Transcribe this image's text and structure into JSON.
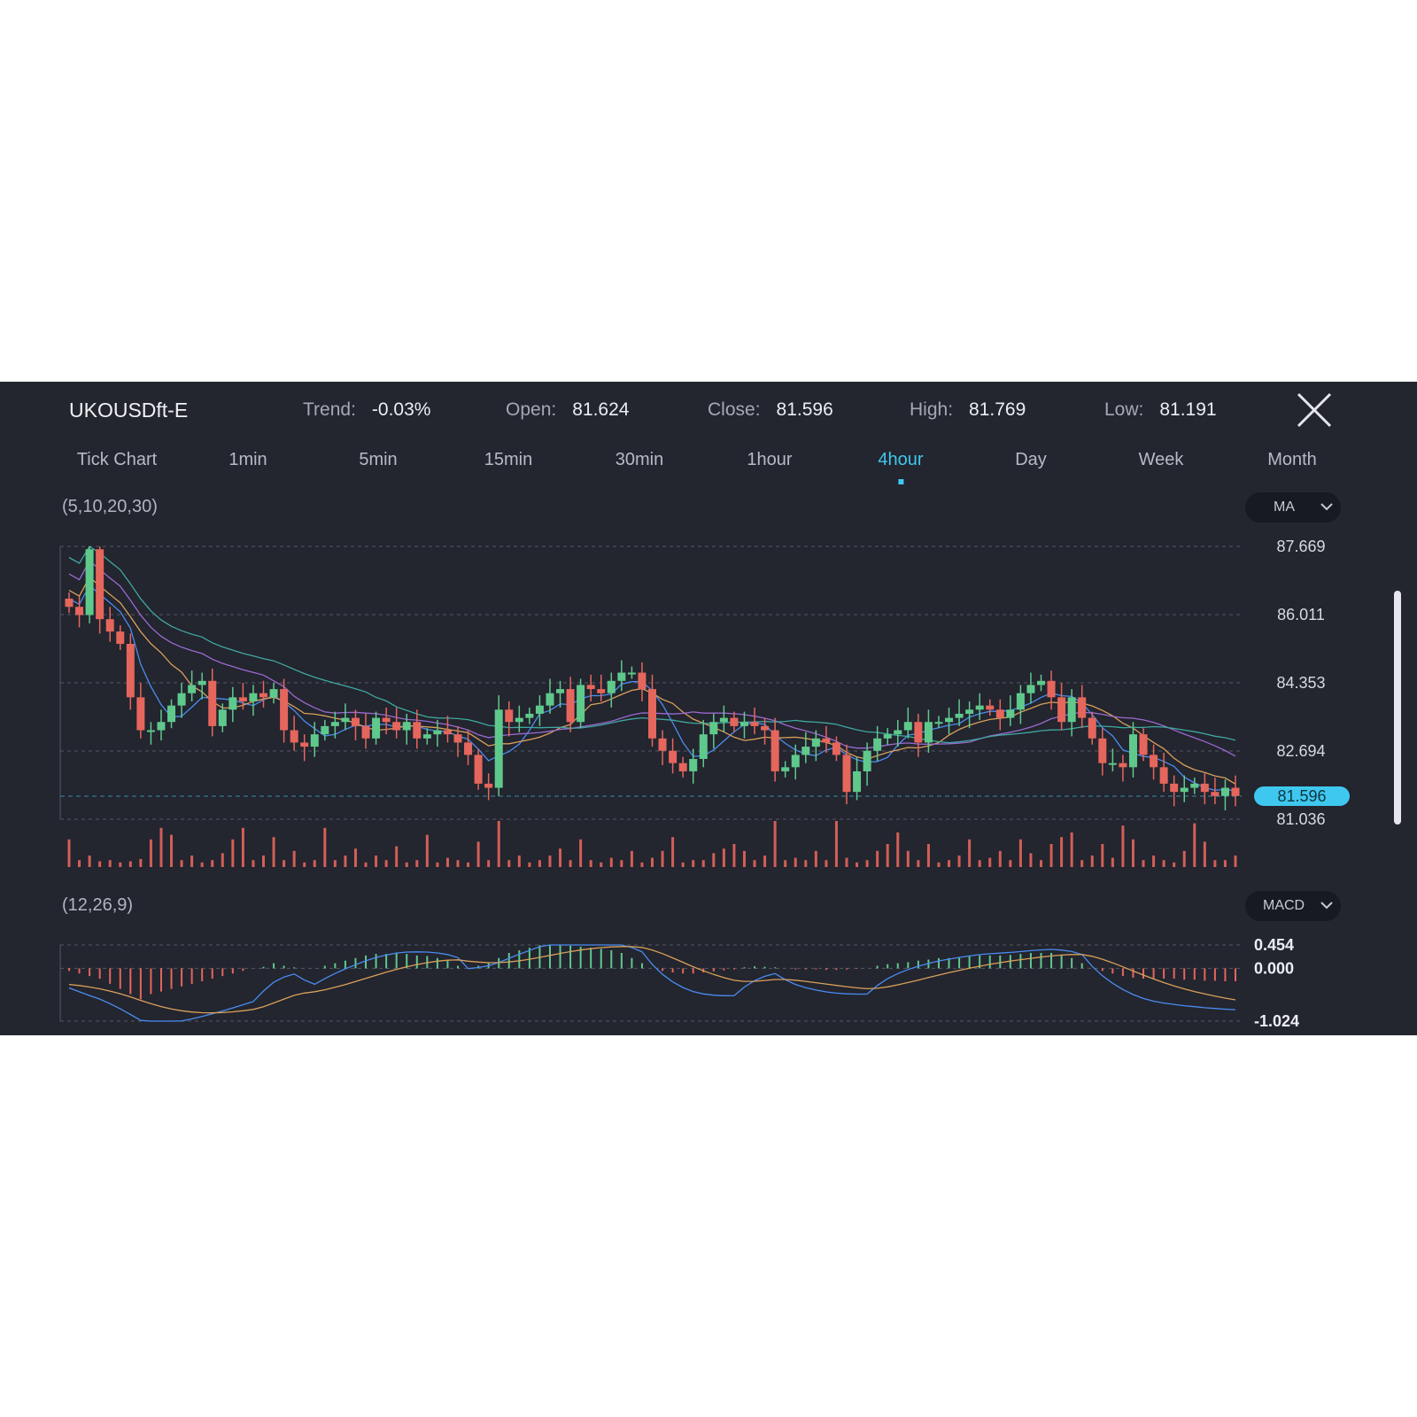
{
  "header": {
    "symbol": "UKOUSDft-E",
    "trend_label": "Trend:",
    "trend_value": "-0.03%",
    "open_label": "Open:",
    "open_value": "81.624",
    "close_label": "Close:",
    "close_value": "81.596",
    "high_label": "High:",
    "high_value": "81.769",
    "low_label": "Low:",
    "low_value": "81.191"
  },
  "tabs": [
    {
      "label": "Tick Chart"
    },
    {
      "label": "1min"
    },
    {
      "label": "5min"
    },
    {
      "label": "15min"
    },
    {
      "label": "30min"
    },
    {
      "label": "1hour"
    },
    {
      "label": "4hour"
    },
    {
      "label": "Day"
    },
    {
      "label": "Week"
    },
    {
      "label": "Month"
    }
  ],
  "active_tab": "4hour",
  "ma_panel": {
    "params": "(5,10,20,30)",
    "indicator": "MA"
  },
  "macd_panel": {
    "params": "(12,26,9)",
    "indicator": "MACD"
  },
  "colors": {
    "background": "#23252f",
    "up": "#5fc98c",
    "down": "#e5665c",
    "accent": "#3fc8ef",
    "ma5": "#4a8cf0",
    "ma10": "#d9a05a",
    "ma20": "#9a6ad0",
    "ma30": "#3fa8a0"
  },
  "icons": {
    "close": "close-icon",
    "dropdown": "chevron-down-icon"
  },
  "chart_data": [
    {
      "type": "candlestick",
      "yticks": [
        "87.669",
        "86.011",
        "84.353",
        "82.694",
        "81.036"
      ],
      "ylim": [
        81.036,
        87.669
      ],
      "current_price": "81.596",
      "grid": true,
      "series": [
        {
          "name": "MA5",
          "values": []
        },
        {
          "name": "MA10",
          "values": []
        },
        {
          "name": "MA20",
          "values": []
        },
        {
          "name": "MA30",
          "values": []
        }
      ],
      "close": [
        86.2,
        86.0,
        87.6,
        85.9,
        85.6,
        85.3,
        84.0,
        83.2,
        83.2,
        83.4,
        83.8,
        84.1,
        84.3,
        84.4,
        83.3,
        83.7,
        84.0,
        83.9,
        84.1,
        84.0,
        84.2,
        83.2,
        82.9,
        82.8,
        83.1,
        83.3,
        83.4,
        83.5,
        83.3,
        83.0,
        83.5,
        83.4,
        83.2,
        83.4,
        83.0,
        83.1,
        83.2,
        83.1,
        82.9,
        82.6,
        81.9,
        81.8,
        83.7,
        83.4,
        83.5,
        83.6,
        83.8,
        84.1,
        84.2,
        83.4,
        84.3,
        84.2,
        84.1,
        84.4,
        84.6,
        84.6,
        84.2,
        83.0,
        82.7,
        82.4,
        82.2,
        82.5,
        83.1,
        83.4,
        83.5,
        83.3,
        83.4,
        83.3,
        83.2,
        82.2,
        82.3,
        82.6,
        82.8,
        83.0,
        82.9,
        82.6,
        81.7,
        82.2,
        82.7,
        83.0,
        83.1,
        83.2,
        83.4,
        82.9,
        83.4,
        83.4,
        83.5,
        83.6,
        83.7,
        83.8,
        83.7,
        83.5,
        83.7,
        84.1,
        84.3,
        84.4,
        84.0,
        83.4,
        84.0,
        83.5,
        83.0,
        82.4,
        82.4,
        82.3,
        83.1,
        82.6,
        82.3,
        81.9,
        81.7,
        81.8,
        81.9,
        81.7,
        81.6,
        81.8,
        81.6
      ],
      "volume": [
        24,
        6,
        10,
        5,
        6,
        4,
        5,
        7,
        24,
        34,
        28,
        6,
        10,
        4,
        6,
        12,
        24,
        34,
        6,
        10,
        26,
        6,
        14,
        4,
        6,
        34,
        6,
        10,
        16,
        4,
        10,
        6,
        18,
        4,
        6,
        28,
        4,
        8,
        6,
        4,
        22,
        6,
        40,
        6,
        10,
        4,
        6,
        10,
        16,
        6,
        24,
        6,
        4,
        8,
        6,
        14,
        4,
        8,
        14,
        26,
        4,
        6,
        6,
        12,
        16,
        20,
        14,
        6,
        10,
        40,
        6,
        8,
        6,
        14,
        6,
        40,
        8,
        4,
        6,
        14,
        20,
        30,
        14,
        6,
        20,
        4,
        6,
        10,
        24,
        6,
        8,
        14,
        6,
        24,
        12,
        6,
        20,
        26,
        30,
        6,
        10,
        20,
        8,
        36,
        24,
        6,
        10,
        6,
        4,
        14,
        38,
        22,
        6,
        6,
        10
      ],
      "ma_panel_params": "(5,10,20,30)"
    },
    {
      "type": "bar",
      "title": "",
      "yticks": [
        "0.454",
        "0.000",
        "-1.024"
      ],
      "ylim": [
        -1.024,
        0.454
      ],
      "grid": true,
      "histogram": [
        -0.05,
        -0.1,
        -0.15,
        -0.2,
        -0.3,
        -0.4,
        -0.5,
        -0.6,
        -0.5,
        -0.45,
        -0.4,
        -0.35,
        -0.3,
        -0.25,
        -0.2,
        -0.15,
        -0.1,
        -0.05,
        0.0,
        0.03,
        0.1,
        0.05,
        0.02,
        0.0,
        0.0,
        0.05,
        0.1,
        0.15,
        0.2,
        0.25,
        0.28,
        0.28,
        0.3,
        0.28,
        0.25,
        0.24,
        0.2,
        0.15,
        0.05,
        0.0,
        0.05,
        0.1,
        0.2,
        0.3,
        0.35,
        0.4,
        0.45,
        0.45,
        0.45,
        0.44,
        0.42,
        0.4,
        0.38,
        0.35,
        0.3,
        0.2,
        0.1,
        0.0,
        -0.05,
        -0.08,
        -0.1,
        -0.1,
        -0.08,
        -0.06,
        -0.04,
        -0.02,
        0.02,
        0.04,
        0.03,
        0.02,
        0.0,
        -0.02,
        -0.02,
        -0.02,
        -0.03,
        -0.03,
        -0.02,
        -0.01,
        0.0,
        0.05,
        0.08,
        0.1,
        0.12,
        0.15,
        0.17,
        0.2,
        0.2,
        0.22,
        0.24,
        0.25,
        0.25,
        0.25,
        0.26,
        0.28,
        0.3,
        0.3,
        0.3,
        0.25,
        0.2,
        0.1,
        0.0,
        -0.05,
        -0.1,
        -0.15,
        -0.18,
        -0.2,
        -0.2,
        -0.2,
        -0.2,
        -0.22,
        -0.22,
        -0.24,
        -0.24,
        -0.25,
        -0.25
      ],
      "macd_panel_params": "(12,26,9)"
    }
  ]
}
